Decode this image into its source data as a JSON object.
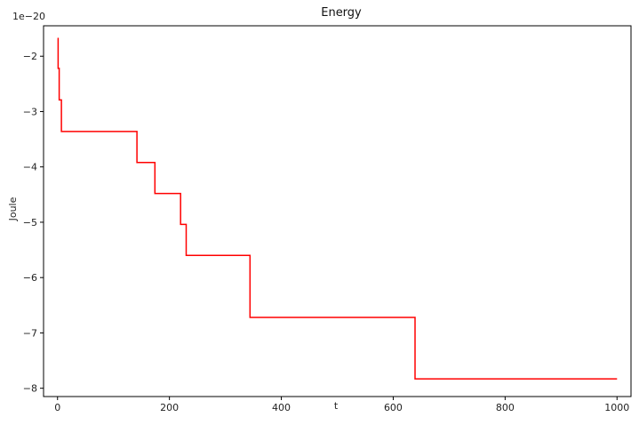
{
  "chart_data": {
    "type": "line",
    "title": "Energy",
    "xlabel": "t",
    "ylabel": "Joule",
    "y_offset_text": "1e−20",
    "xlim": [
      -25,
      1025
    ],
    "ylim": [
      -8.15,
      -1.45
    ],
    "x_ticks": [
      0,
      200,
      400,
      600,
      800,
      1000
    ],
    "x_tick_labels": [
      "0",
      "200",
      "400",
      "600",
      "800",
      "1000"
    ],
    "y_ticks": [
      -8,
      -7,
      -6,
      -5,
      -4,
      -3,
      -2
    ],
    "y_tick_labels": [
      "−8",
      "−7",
      "−6",
      "−5",
      "−4",
      "−3",
      "−2"
    ],
    "grid": false,
    "legend": "none",
    "series": [
      {
        "color": "#ff0000",
        "step": true,
        "x": [
          0,
          1,
          1,
          3,
          3,
          7,
          7,
          142,
          142,
          174,
          174,
          220,
          220,
          230,
          230,
          344,
          344,
          639,
          639,
          1000
        ],
        "y": [
          -1.68,
          -1.68,
          -2.22,
          -2.22,
          -2.79,
          -2.79,
          -3.36,
          -3.36,
          -3.92,
          -3.92,
          -4.48,
          -4.48,
          -5.04,
          -5.04,
          -5.6,
          -5.6,
          -6.72,
          -6.72,
          -7.83,
          -7.83
        ]
      }
    ]
  }
}
